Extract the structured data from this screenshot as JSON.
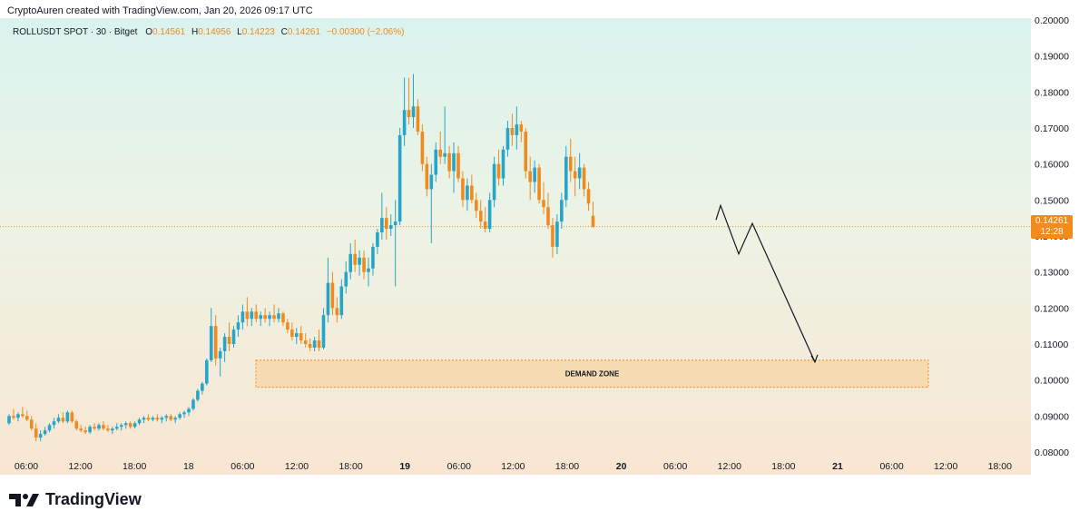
{
  "header": {
    "attribution": "CryptoAuren created with TradingView.com, Jan 20, 2026 09:17 UTC"
  },
  "legend": {
    "symbol": "ROLLUSDT SPOT · 30 · Bitget",
    "open_label": "O",
    "open": "0.14561",
    "high_label": "H",
    "high": "0.14956",
    "low_label": "L",
    "low": "0.14223",
    "close_label": "C",
    "close": "0.14261",
    "change": "−0.00300 (−2.06%)"
  },
  "price_tag": {
    "price": "0.14261",
    "countdown": "12:28"
  },
  "footer": {
    "brand": "TradingView"
  },
  "colors": {
    "up": "#26a5c8",
    "down": "#ef8a1e",
    "zone_fill": "#f6d7a8",
    "zone_border": "#ef8a1e",
    "price_line": "#ef8a1e"
  },
  "chart_data": {
    "type": "candlestick",
    "ylim": [
      0.08,
      0.2
    ],
    "y_ticks": [
      "0.20000",
      "0.19000",
      "0.18000",
      "0.17000",
      "0.16000",
      "0.15000",
      "0.14000",
      "0.13000",
      "0.12000",
      "0.11000",
      "0.10000",
      "0.09000",
      "0.08000"
    ],
    "x_ticks": [
      "06:00",
      "12:00",
      "18:00",
      "18",
      "06:00",
      "12:00",
      "18:00",
      "19",
      "06:00",
      "12:00",
      "18:00",
      "20",
      "06:00",
      "12:00",
      "18:00",
      "21",
      "06:00",
      "12:00",
      "18:00"
    ],
    "bold_ticks": [
      "19",
      "20",
      "21"
    ],
    "current_price": 0.14261,
    "demand_zone": {
      "label": "DEMAND ZONE",
      "low": 0.098,
      "high": 0.1055
    },
    "projection": [
      0.1445,
      0.1485,
      0.135,
      0.1435,
      0.105
    ],
    "ohlc": [
      [
        0.088,
        0.0905,
        0.0875,
        0.09
      ],
      [
        0.09,
        0.092,
        0.089,
        0.0895
      ],
      [
        0.0895,
        0.091,
        0.0885,
        0.0905
      ],
      [
        0.0905,
        0.0925,
        0.0895,
        0.09
      ],
      [
        0.09,
        0.0915,
        0.0885,
        0.089
      ],
      [
        0.089,
        0.09,
        0.086,
        0.0865
      ],
      [
        0.0865,
        0.088,
        0.083,
        0.084
      ],
      [
        0.084,
        0.086,
        0.083,
        0.085
      ],
      [
        0.085,
        0.087,
        0.0845,
        0.086
      ],
      [
        0.086,
        0.088,
        0.0855,
        0.0875
      ],
      [
        0.0875,
        0.0895,
        0.0865,
        0.0885
      ],
      [
        0.0885,
        0.0905,
        0.088,
        0.0895
      ],
      [
        0.0895,
        0.091,
        0.088,
        0.0885
      ],
      [
        0.0885,
        0.0915,
        0.088,
        0.091
      ],
      [
        0.091,
        0.0915,
        0.088,
        0.0885
      ],
      [
        0.0885,
        0.089,
        0.086,
        0.0865
      ],
      [
        0.0865,
        0.0875,
        0.0855,
        0.086
      ],
      [
        0.086,
        0.087,
        0.085,
        0.0855
      ],
      [
        0.0855,
        0.0875,
        0.085,
        0.087
      ],
      [
        0.087,
        0.088,
        0.086,
        0.0865
      ],
      [
        0.0865,
        0.088,
        0.086,
        0.0875
      ],
      [
        0.0875,
        0.0885,
        0.086,
        0.0865
      ],
      [
        0.0865,
        0.0875,
        0.0855,
        0.086
      ],
      [
        0.086,
        0.087,
        0.085,
        0.0865
      ],
      [
        0.0865,
        0.088,
        0.086,
        0.087
      ],
      [
        0.087,
        0.088,
        0.086,
        0.0875
      ],
      [
        0.0875,
        0.0885,
        0.0865,
        0.088
      ],
      [
        0.088,
        0.0885,
        0.0865,
        0.087
      ],
      [
        0.087,
        0.0885,
        0.0865,
        0.088
      ],
      [
        0.088,
        0.0895,
        0.0875,
        0.089
      ],
      [
        0.089,
        0.09,
        0.088,
        0.0895
      ],
      [
        0.0895,
        0.0905,
        0.0885,
        0.089
      ],
      [
        0.089,
        0.09,
        0.0885,
        0.0895
      ],
      [
        0.0895,
        0.0905,
        0.0885,
        0.089
      ],
      [
        0.089,
        0.09,
        0.088,
        0.0895
      ],
      [
        0.0895,
        0.0905,
        0.0885,
        0.09
      ],
      [
        0.09,
        0.0905,
        0.0885,
        0.089
      ],
      [
        0.089,
        0.09,
        0.088,
        0.0895
      ],
      [
        0.0895,
        0.091,
        0.089,
        0.0905
      ],
      [
        0.0905,
        0.0915,
        0.0895,
        0.091
      ],
      [
        0.091,
        0.0925,
        0.09,
        0.092
      ],
      [
        0.092,
        0.095,
        0.0915,
        0.0945
      ],
      [
        0.0945,
        0.0975,
        0.094,
        0.097
      ],
      [
        0.097,
        0.0995,
        0.096,
        0.099
      ],
      [
        0.099,
        0.106,
        0.0985,
        0.1055
      ],
      [
        0.1055,
        0.12,
        0.105,
        0.115
      ],
      [
        0.115,
        0.118,
        0.104,
        0.106
      ],
      [
        0.106,
        0.109,
        0.101,
        0.108
      ],
      [
        0.108,
        0.113,
        0.105,
        0.112
      ],
      [
        0.112,
        0.116,
        0.108,
        0.11
      ],
      [
        0.11,
        0.115,
        0.109,
        0.114
      ],
      [
        0.114,
        0.118,
        0.112,
        0.116
      ],
      [
        0.116,
        0.121,
        0.114,
        0.119
      ],
      [
        0.119,
        0.123,
        0.115,
        0.117
      ],
      [
        0.117,
        0.12,
        0.115,
        0.119
      ],
      [
        0.119,
        0.121,
        0.116,
        0.117
      ],
      [
        0.117,
        0.119,
        0.115,
        0.118
      ],
      [
        0.118,
        0.12,
        0.116,
        0.117
      ],
      [
        0.117,
        0.119,
        0.115,
        0.118
      ],
      [
        0.118,
        0.121,
        0.116,
        0.117
      ],
      [
        0.117,
        0.12,
        0.116,
        0.1185
      ],
      [
        0.1185,
        0.119,
        0.115,
        0.116
      ],
      [
        0.116,
        0.117,
        0.113,
        0.114
      ],
      [
        0.114,
        0.116,
        0.111,
        0.112
      ],
      [
        0.112,
        0.1145,
        0.11,
        0.113
      ],
      [
        0.113,
        0.115,
        0.11,
        0.111
      ],
      [
        0.111,
        0.113,
        0.109,
        0.11
      ],
      [
        0.11,
        0.1115,
        0.108,
        0.109
      ],
      [
        0.109,
        0.112,
        0.108,
        0.111
      ],
      [
        0.111,
        0.114,
        0.108,
        0.109
      ],
      [
        0.109,
        0.12,
        0.1085,
        0.118
      ],
      [
        0.118,
        0.134,
        0.116,
        0.127
      ],
      [
        0.127,
        0.13,
        0.118,
        0.12
      ],
      [
        0.12,
        0.123,
        0.116,
        0.118
      ],
      [
        0.118,
        0.128,
        0.117,
        0.126
      ],
      [
        0.126,
        0.133,
        0.124,
        0.13
      ],
      [
        0.13,
        0.138,
        0.128,
        0.135
      ],
      [
        0.135,
        0.139,
        0.13,
        0.132
      ],
      [
        0.132,
        0.136,
        0.129,
        0.134
      ],
      [
        0.134,
        0.136,
        0.128,
        0.13
      ],
      [
        0.13,
        0.134,
        0.126,
        0.131
      ],
      [
        0.131,
        0.138,
        0.129,
        0.137
      ],
      [
        0.137,
        0.142,
        0.135,
        0.141
      ],
      [
        0.141,
        0.152,
        0.139,
        0.145
      ],
      [
        0.145,
        0.148,
        0.139,
        0.142
      ],
      [
        0.142,
        0.146,
        0.14,
        0.143
      ],
      [
        0.143,
        0.15,
        0.126,
        0.144
      ],
      [
        0.144,
        0.17,
        0.143,
        0.168
      ],
      [
        0.168,
        0.184,
        0.165,
        0.175
      ],
      [
        0.175,
        0.184,
        0.171,
        0.173
      ],
      [
        0.173,
        0.185,
        0.17,
        0.176
      ],
      [
        0.176,
        0.178,
        0.168,
        0.169
      ],
      [
        0.169,
        0.171,
        0.158,
        0.16
      ],
      [
        0.16,
        0.162,
        0.151,
        0.153
      ],
      [
        0.153,
        0.16,
        0.138,
        0.157
      ],
      [
        0.157,
        0.166,
        0.155,
        0.164
      ],
      [
        0.164,
        0.169,
        0.16,
        0.162
      ],
      [
        0.162,
        0.176,
        0.16,
        0.163
      ],
      [
        0.163,
        0.165,
        0.156,
        0.158
      ],
      [
        0.158,
        0.166,
        0.152,
        0.163
      ],
      [
        0.163,
        0.165,
        0.155,
        0.156
      ],
      [
        0.156,
        0.158,
        0.148,
        0.15
      ],
      [
        0.15,
        0.156,
        0.147,
        0.154
      ],
      [
        0.154,
        0.157,
        0.149,
        0.15
      ],
      [
        0.15,
        0.152,
        0.145,
        0.147
      ],
      [
        0.147,
        0.15,
        0.142,
        0.144
      ],
      [
        0.144,
        0.148,
        0.141,
        0.142
      ],
      [
        0.142,
        0.152,
        0.141,
        0.15
      ],
      [
        0.15,
        0.162,
        0.148,
        0.16
      ],
      [
        0.16,
        0.164,
        0.154,
        0.156
      ],
      [
        0.156,
        0.165,
        0.154,
        0.164
      ],
      [
        0.164,
        0.172,
        0.162,
        0.17
      ],
      [
        0.17,
        0.174,
        0.165,
        0.168
      ],
      [
        0.168,
        0.176,
        0.164,
        0.171
      ],
      [
        0.171,
        0.172,
        0.166,
        0.169
      ],
      [
        0.169,
        0.17,
        0.156,
        0.158
      ],
      [
        0.158,
        0.162,
        0.15,
        0.155
      ],
      [
        0.155,
        0.161,
        0.152,
        0.159
      ],
      [
        0.159,
        0.16,
        0.149,
        0.15
      ],
      [
        0.15,
        0.155,
        0.146,
        0.148
      ],
      [
        0.148,
        0.152,
        0.142,
        0.143
      ],
      [
        0.143,
        0.145,
        0.134,
        0.137
      ],
      [
        0.137,
        0.146,
        0.135,
        0.144
      ],
      [
        0.144,
        0.152,
        0.142,
        0.15
      ],
      [
        0.15,
        0.165,
        0.148,
        0.162
      ],
      [
        0.162,
        0.167,
        0.155,
        0.158
      ],
      [
        0.158,
        0.162,
        0.151,
        0.156
      ],
      [
        0.156,
        0.163,
        0.153,
        0.159
      ],
      [
        0.159,
        0.16,
        0.151,
        0.153
      ],
      [
        0.153,
        0.155,
        0.147,
        0.149
      ],
      [
        0.14561,
        0.14956,
        0.14223,
        0.14261
      ]
    ]
  }
}
